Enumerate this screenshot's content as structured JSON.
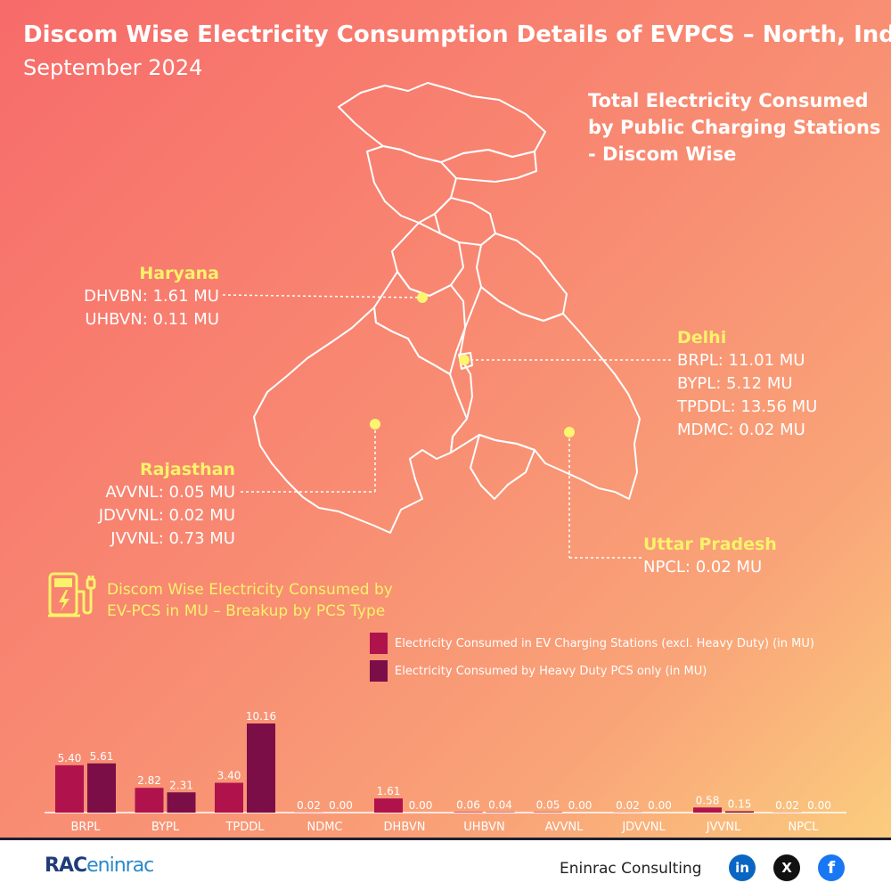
{
  "header": {
    "title": "Discom Wise Electricity Consumption Details of EVPCS – North, India",
    "subtitle": "September 2024"
  },
  "total_heading": [
    "Total Electricity Consumed",
    "by Public Charging Stations",
    "- Discom Wise"
  ],
  "regions": {
    "haryana": {
      "name": "Haryana",
      "items": [
        "DHVBN: 1.61 MU",
        "UHBVN: 0.11 MU"
      ]
    },
    "delhi": {
      "name": "Delhi",
      "items": [
        "BRPL: 11.01 MU",
        "BYPL: 5.12 MU",
        "TPDDL: 13.56 MU",
        "MDMC: 0.02 MU"
      ]
    },
    "rajasthan": {
      "name": "Rajasthan",
      "items": [
        "AVVNL: 0.05 MU",
        "JDVVNL: 0.02 MU",
        "JVVNL: 0.73 MU"
      ]
    },
    "uttar_pradesh": {
      "name": "Uttar Pradesh",
      "items": [
        "NPCL: 0.02 MU"
      ]
    }
  },
  "ev_caption": [
    "Discom Wise Electricity Consumed by",
    "EV-PCS in MU – Breakup by PCS Type"
  ],
  "ev_icon": "ev-charger-icon",
  "chart_data": {
    "type": "bar",
    "categories": [
      "BRPL",
      "BYPL",
      "TPDDL",
      "NDMC",
      "DHBVN",
      "UHBVN",
      "AVVNL",
      "JDVVNL",
      "JVVNL",
      "NPCL"
    ],
    "series": [
      {
        "name": "Electricity Consumed in EV Charging Stations (excl. Heavy Duty) (in MU)",
        "values": [
          5.4,
          2.82,
          3.4,
          0.02,
          1.61,
          0.06,
          0.05,
          0.02,
          0.58,
          0.02
        ],
        "labels": [
          "5.40",
          "2.82",
          "3.40",
          "0.02",
          "1.61",
          "0.06",
          "0.05",
          "0.02",
          "0.58",
          "0.02"
        ],
        "color": "#b0134c"
      },
      {
        "name": "Electricity Consumed by Heavy Duty PCS only (in MU)",
        "values": [
          5.61,
          2.31,
          10.16,
          0.0,
          0.0,
          0.04,
          0.0,
          0.0,
          0.15,
          0.0
        ],
        "labels": [
          "5.61",
          "2.31",
          "10.16",
          "0.00",
          "0.00",
          "0.04",
          "0.00",
          "0.00",
          "0.15",
          "0.00"
        ],
        "color": "#7c0e47"
      }
    ],
    "ylim": [
      0,
      10.16
    ],
    "legend": "top-right",
    "grid": false
  },
  "footer": {
    "brand": "Eninrac Consulting",
    "logo_text": "RAC",
    "logo_text_2": "eninrac",
    "social": [
      {
        "icon": "linkedin-icon",
        "glyph": "in",
        "color": "#0a66c2"
      },
      {
        "icon": "x-icon",
        "glyph": "X",
        "color": "#111111"
      },
      {
        "icon": "facebook-icon",
        "glyph": "f",
        "color": "#1877f2"
      }
    ]
  }
}
